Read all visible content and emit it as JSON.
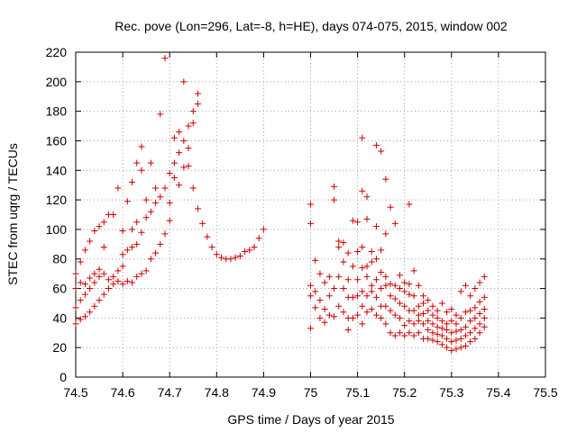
{
  "chart_data": {
    "type": "scatter",
    "title": "Rec. pove (Lon=296, Lat=-8, h=HE), days 074-075, 2015, window 002",
    "xlabel": "GPS time / Days of year 2015",
    "ylabel": "STEC from uqrg / TECUs",
    "xlim": [
      74.5,
      75.5
    ],
    "ylim": [
      0,
      220
    ],
    "xticks": [
      "74.5",
      "74.6",
      "74.7",
      "74.8",
      "74.9",
      "75",
      "75.1",
      "75.2",
      "75.3",
      "75.4",
      "75.5"
    ],
    "yticks": [
      "0",
      "20",
      "40",
      "60",
      "80",
      "100",
      "120",
      "140",
      "160",
      "180",
      "200",
      "220"
    ],
    "grid": true,
    "marker": "plus",
    "color": "#cc0000",
    "points": [
      [
        74.5,
        36
      ],
      [
        74.5,
        47
      ],
      [
        74.5,
        60
      ],
      [
        74.5,
        70
      ],
      [
        74.51,
        39
      ],
      [
        74.51,
        52
      ],
      [
        74.51,
        64
      ],
      [
        74.51,
        78
      ],
      [
        74.52,
        41
      ],
      [
        74.52,
        56
      ],
      [
        74.52,
        63
      ],
      [
        74.52,
        86
      ],
      [
        74.53,
        44
      ],
      [
        74.53,
        60
      ],
      [
        74.53,
        67
      ],
      [
        74.53,
        92
      ],
      [
        74.54,
        48
      ],
      [
        74.54,
        64
      ],
      [
        74.54,
        70
      ],
      [
        74.54,
        99
      ],
      [
        74.55,
        52
      ],
      [
        74.55,
        68
      ],
      [
        74.55,
        73
      ],
      [
        74.55,
        102
      ],
      [
        74.56,
        56
      ],
      [
        74.56,
        70
      ],
      [
        74.56,
        88
      ],
      [
        74.56,
        105
      ],
      [
        74.57,
        60
      ],
      [
        74.57,
        66
      ],
      [
        74.57,
        110
      ],
      [
        74.58,
        63
      ],
      [
        74.58,
        68
      ],
      [
        74.58,
        110
      ],
      [
        74.59,
        65
      ],
      [
        74.59,
        72
      ],
      [
        74.59,
        128
      ],
      [
        74.6,
        63
      ],
      [
        74.6,
        75
      ],
      [
        74.6,
        83
      ],
      [
        74.6,
        99
      ],
      [
        74.61,
        65
      ],
      [
        74.61,
        86
      ],
      [
        74.61,
        119
      ],
      [
        74.62,
        64
      ],
      [
        74.62,
        88
      ],
      [
        74.62,
        100
      ],
      [
        74.62,
        132
      ],
      [
        74.63,
        68
      ],
      [
        74.63,
        90
      ],
      [
        74.63,
        105
      ],
      [
        74.63,
        145
      ],
      [
        74.64,
        70
      ],
      [
        74.64,
        98
      ],
      [
        74.64,
        140
      ],
      [
        74.64,
        156
      ],
      [
        74.65,
        72
      ],
      [
        74.65,
        108
      ],
      [
        74.65,
        120
      ],
      [
        74.66,
        80
      ],
      [
        74.66,
        112
      ],
      [
        74.66,
        145
      ],
      [
        74.67,
        84
      ],
      [
        74.67,
        118
      ],
      [
        74.67,
        128
      ],
      [
        74.68,
        90
      ],
      [
        74.68,
        122
      ],
      [
        74.68,
        178
      ],
      [
        74.69,
        97
      ],
      [
        74.69,
        128
      ],
      [
        74.69,
        216
      ],
      [
        74.7,
        106
      ],
      [
        74.7,
        118
      ],
      [
        74.7,
        138
      ],
      [
        74.71,
        135
      ],
      [
        74.71,
        145
      ],
      [
        74.71,
        162
      ],
      [
        74.72,
        130
      ],
      [
        74.72,
        152
      ],
      [
        74.72,
        166
      ],
      [
        74.73,
        142
      ],
      [
        74.73,
        160
      ],
      [
        74.73,
        200
      ],
      [
        74.74,
        143
      ],
      [
        74.74,
        155
      ],
      [
        74.74,
        170
      ],
      [
        74.75,
        128
      ],
      [
        74.75,
        172
      ],
      [
        74.75,
        180
      ],
      [
        74.76,
        114
      ],
      [
        74.76,
        185
      ],
      [
        74.76,
        192
      ],
      [
        74.77,
        104
      ],
      [
        74.78,
        95
      ],
      [
        74.79,
        88
      ],
      [
        74.8,
        83
      ],
      [
        74.81,
        81
      ],
      [
        74.82,
        80
      ],
      [
        74.83,
        80
      ],
      [
        74.84,
        81
      ],
      [
        74.85,
        82
      ],
      [
        74.86,
        85
      ],
      [
        74.87,
        86
      ],
      [
        74.88,
        88
      ],
      [
        74.89,
        94
      ],
      [
        74.9,
        100
      ],
      [
        75.0,
        33
      ],
      [
        75.0,
        55
      ],
      [
        75.0,
        62
      ],
      [
        75.0,
        104
      ],
      [
        75.0,
        117
      ],
      [
        75.01,
        47
      ],
      [
        75.01,
        58
      ],
      [
        75.01,
        79
      ],
      [
        75.02,
        40
      ],
      [
        75.02,
        52
      ],
      [
        75.02,
        70
      ],
      [
        75.03,
        37
      ],
      [
        75.03,
        46
      ],
      [
        75.03,
        64
      ],
      [
        75.04,
        42
      ],
      [
        75.04,
        55
      ],
      [
        75.04,
        68
      ],
      [
        75.05,
        41
      ],
      [
        75.05,
        60
      ],
      [
        75.05,
        120
      ],
      [
        75.05,
        129
      ],
      [
        75.06,
        48
      ],
      [
        75.06,
        68
      ],
      [
        75.06,
        88
      ],
      [
        75.06,
        92
      ],
      [
        75.07,
        44
      ],
      [
        75.07,
        60
      ],
      [
        75.07,
        78
      ],
      [
        75.07,
        91
      ],
      [
        75.08,
        32
      ],
      [
        75.08,
        40
      ],
      [
        75.08,
        54
      ],
      [
        75.08,
        66
      ],
      [
        75.08,
        84
      ],
      [
        75.09,
        40
      ],
      [
        75.09,
        54
      ],
      [
        75.09,
        75
      ],
      [
        75.09,
        106
      ],
      [
        75.1,
        42
      ],
      [
        75.1,
        55
      ],
      [
        75.1,
        66
      ],
      [
        75.1,
        85
      ],
      [
        75.1,
        105
      ],
      [
        75.11,
        36
      ],
      [
        75.11,
        48
      ],
      [
        75.11,
        58
      ],
      [
        75.11,
        74
      ],
      [
        75.11,
        88
      ],
      [
        75.11,
        126
      ],
      [
        75.11,
        162
      ],
      [
        75.12,
        44
      ],
      [
        75.12,
        55
      ],
      [
        75.12,
        68
      ],
      [
        75.12,
        75
      ],
      [
        75.12,
        107
      ],
      [
        75.12,
        122
      ],
      [
        75.13,
        46
      ],
      [
        75.13,
        58
      ],
      [
        75.13,
        62
      ],
      [
        75.13,
        78
      ],
      [
        75.13,
        85
      ],
      [
        75.14,
        42
      ],
      [
        75.14,
        54
      ],
      [
        75.14,
        66
      ],
      [
        75.14,
        80
      ],
      [
        75.14,
        102
      ],
      [
        75.14,
        157
      ],
      [
        75.15,
        40
      ],
      [
        75.15,
        48
      ],
      [
        75.15,
        60
      ],
      [
        75.15,
        71
      ],
      [
        75.15,
        86
      ],
      [
        75.15,
        153
      ],
      [
        75.16,
        36
      ],
      [
        75.16,
        48
      ],
      [
        75.16,
        62
      ],
      [
        75.16,
        68
      ],
      [
        75.16,
        97
      ],
      [
        75.16,
        134
      ],
      [
        75.17,
        30
      ],
      [
        75.17,
        45
      ],
      [
        75.17,
        55
      ],
      [
        75.17,
        63
      ],
      [
        75.17,
        115
      ],
      [
        75.18,
        28
      ],
      [
        75.18,
        42
      ],
      [
        75.18,
        53
      ],
      [
        75.18,
        62
      ],
      [
        75.18,
        104
      ],
      [
        75.19,
        30
      ],
      [
        75.19,
        40
      ],
      [
        75.19,
        50
      ],
      [
        75.19,
        60
      ],
      [
        75.19,
        69
      ],
      [
        75.2,
        28
      ],
      [
        75.2,
        35
      ],
      [
        75.2,
        48
      ],
      [
        75.2,
        58
      ],
      [
        75.2,
        64
      ],
      [
        75.21,
        30
      ],
      [
        75.21,
        38
      ],
      [
        75.21,
        45
      ],
      [
        75.21,
        56
      ],
      [
        75.21,
        63
      ],
      [
        75.21,
        117
      ],
      [
        75.22,
        28
      ],
      [
        75.22,
        36
      ],
      [
        75.22,
        45
      ],
      [
        75.22,
        55
      ],
      [
        75.22,
        72
      ],
      [
        75.23,
        30
      ],
      [
        75.23,
        38
      ],
      [
        75.23,
        42
      ],
      [
        75.23,
        48
      ],
      [
        75.23,
        62
      ],
      [
        75.24,
        26
      ],
      [
        75.24,
        36
      ],
      [
        75.24,
        43
      ],
      [
        75.24,
        50
      ],
      [
        75.24,
        55
      ],
      [
        75.25,
        26
      ],
      [
        75.25,
        32
      ],
      [
        75.25,
        38
      ],
      [
        75.25,
        45
      ],
      [
        75.25,
        52
      ],
      [
        75.26,
        25
      ],
      [
        75.26,
        30
      ],
      [
        75.26,
        36
      ],
      [
        75.26,
        42
      ],
      [
        75.26,
        48
      ],
      [
        75.27,
        24
      ],
      [
        75.27,
        29
      ],
      [
        75.27,
        34
      ],
      [
        75.27,
        40
      ],
      [
        75.27,
        45
      ],
      [
        75.28,
        22
      ],
      [
        75.28,
        28
      ],
      [
        75.28,
        33
      ],
      [
        75.28,
        38
      ],
      [
        75.28,
        50
      ],
      [
        75.29,
        20
      ],
      [
        75.29,
        26
      ],
      [
        75.29,
        32
      ],
      [
        75.29,
        36
      ],
      [
        75.29,
        44
      ],
      [
        75.3,
        18
      ],
      [
        75.3,
        24
      ],
      [
        75.3,
        30
      ],
      [
        75.3,
        38
      ],
      [
        75.3,
        46
      ],
      [
        75.31,
        19
      ],
      [
        75.31,
        25
      ],
      [
        75.31,
        31
      ],
      [
        75.31,
        36
      ],
      [
        75.31,
        42
      ],
      [
        75.32,
        20
      ],
      [
        75.32,
        26
      ],
      [
        75.32,
        32
      ],
      [
        75.32,
        40
      ],
      [
        75.32,
        58
      ],
      [
        75.33,
        21
      ],
      [
        75.33,
        28
      ],
      [
        75.33,
        34
      ],
      [
        75.33,
        44
      ],
      [
        75.33,
        62
      ],
      [
        75.34,
        24
      ],
      [
        75.34,
        30
      ],
      [
        75.34,
        38
      ],
      [
        75.34,
        45
      ],
      [
        75.34,
        55
      ],
      [
        75.35,
        26
      ],
      [
        75.35,
        33
      ],
      [
        75.35,
        40
      ],
      [
        75.35,
        47
      ],
      [
        75.35,
        60
      ],
      [
        75.36,
        30
      ],
      [
        75.36,
        36
      ],
      [
        75.36,
        43
      ],
      [
        75.36,
        51
      ],
      [
        75.36,
        64
      ],
      [
        75.37,
        34
      ],
      [
        75.37,
        40
      ],
      [
        75.37,
        46
      ],
      [
        75.37,
        54
      ],
      [
        75.37,
        68
      ]
    ]
  }
}
